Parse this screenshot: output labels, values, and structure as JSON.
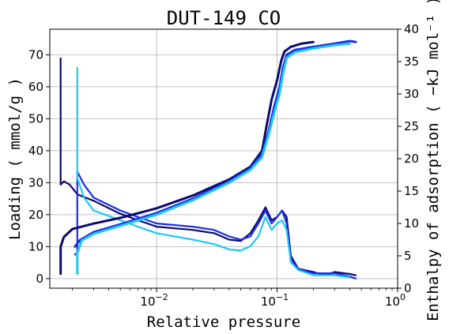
{
  "chart_data": {
    "type": "line",
    "title": "DUT-149 CO",
    "xlabel": "Relative pressure",
    "ylabel": "Loading ( mmol/g )",
    "y2label": "Enthalpy of adsorption ( −kJ mol⁻¹ )",
    "xscale": "log",
    "xlim": [
      0.0013,
      1.0
    ],
    "ylim": [
      -3,
      78
    ],
    "y2lim": [
      0,
      40
    ],
    "grid": true,
    "legend": "none",
    "x_ticks": [
      {
        "value": 0.01,
        "base": "10",
        "exp": "−2"
      },
      {
        "value": 0.1,
        "base": "10",
        "exp": "−1"
      },
      {
        "value": 1,
        "base": "10",
        "exp": "0"
      }
    ],
    "y_ticks": [
      "0",
      "10",
      "20",
      "30",
      "40",
      "50",
      "60",
      "70"
    ],
    "y2_ticks": [
      "0",
      "5",
      "10",
      "15",
      "20",
      "25",
      "30",
      "35",
      "40"
    ],
    "isotherms": [
      {
        "color": "#0a0a6e",
        "points": [
          [
            0.0016,
            1.5
          ],
          [
            0.0016,
            10
          ],
          [
            0.0017,
            13
          ],
          [
            0.002,
            15.5
          ],
          [
            0.003,
            17.2
          ],
          [
            0.005,
            19
          ],
          [
            0.01,
            22
          ],
          [
            0.02,
            26
          ],
          [
            0.04,
            31
          ],
          [
            0.06,
            35
          ],
          [
            0.075,
            40
          ],
          [
            0.082,
            48
          ],
          [
            0.09,
            56
          ],
          [
            0.1,
            62
          ],
          [
            0.108,
            68
          ],
          [
            0.115,
            71
          ],
          [
            0.13,
            72.5
          ],
          [
            0.16,
            73.5
          ],
          [
            0.2,
            74
          ]
        ]
      },
      {
        "color": "#1a2ee6",
        "points": [
          [
            0.0021,
            10
          ],
          [
            0.0023,
            12
          ],
          [
            0.003,
            14.5
          ],
          [
            0.005,
            17
          ],
          [
            0.01,
            20.5
          ],
          [
            0.02,
            25
          ],
          [
            0.04,
            30.5
          ],
          [
            0.06,
            34.5
          ],
          [
            0.075,
            39
          ],
          [
            0.085,
            46
          ],
          [
            0.095,
            54
          ],
          [
            0.105,
            60
          ],
          [
            0.112,
            66
          ],
          [
            0.12,
            70
          ],
          [
            0.14,
            71.5
          ],
          [
            0.2,
            72.5
          ],
          [
            0.3,
            73.5
          ],
          [
            0.4,
            74.3
          ],
          [
            0.45,
            74
          ]
        ]
      },
      {
        "color": "#1ec8f0",
        "points": [
          [
            0.0022,
            1.5
          ],
          [
            0.0022,
            8
          ],
          [
            0.0024,
            12
          ],
          [
            0.003,
            14
          ],
          [
            0.005,
            16.5
          ],
          [
            0.01,
            20
          ],
          [
            0.02,
            24.5
          ],
          [
            0.04,
            30
          ],
          [
            0.06,
            34
          ],
          [
            0.075,
            38
          ],
          [
            0.085,
            45
          ],
          [
            0.095,
            52
          ],
          [
            0.105,
            58
          ],
          [
            0.112,
            64
          ],
          [
            0.12,
            69
          ],
          [
            0.14,
            70.8
          ],
          [
            0.2,
            72
          ],
          [
            0.3,
            73
          ],
          [
            0.4,
            73.5
          ]
        ]
      }
    ],
    "enthalpy": [
      {
        "color": "#0a0a6e",
        "points": [
          [
            0.0016,
            35.5
          ],
          [
            0.0016,
            16
          ],
          [
            0.0017,
            16.5
          ],
          [
            0.0019,
            16
          ],
          [
            0.0022,
            14.5
          ],
          [
            0.003,
            13.5
          ],
          [
            0.005,
            11.5
          ],
          [
            0.007,
            10.5
          ],
          [
            0.01,
            9.5
          ],
          [
            0.02,
            9
          ],
          [
            0.03,
            8.5
          ],
          [
            0.04,
            7.5
          ],
          [
            0.05,
            7.3
          ],
          [
            0.06,
            8.5
          ],
          [
            0.07,
            10.5
          ],
          [
            0.08,
            12.5
          ],
          [
            0.09,
            10.5
          ],
          [
            0.1,
            11
          ],
          [
            0.11,
            12
          ],
          [
            0.12,
            11
          ],
          [
            0.13,
            5
          ],
          [
            0.15,
            3
          ],
          [
            0.2,
            2.5
          ],
          [
            0.25,
            2
          ],
          [
            0.3,
            2.5
          ],
          [
            0.4,
            2.2
          ],
          [
            0.45,
            2
          ]
        ]
      },
      {
        "color": "#1a2ee6",
        "points": [
          [
            0.0021,
            5.2
          ],
          [
            0.0022,
            5.5
          ],
          [
            0.0022,
            18
          ],
          [
            0.0025,
            16
          ],
          [
            0.003,
            14
          ],
          [
            0.005,
            12
          ],
          [
            0.007,
            11
          ],
          [
            0.01,
            10
          ],
          [
            0.02,
            9.5
          ],
          [
            0.03,
            9
          ],
          [
            0.04,
            8
          ],
          [
            0.05,
            7.5
          ],
          [
            0.06,
            8
          ],
          [
            0.07,
            10
          ],
          [
            0.08,
            12
          ],
          [
            0.09,
            10
          ],
          [
            0.1,
            11
          ],
          [
            0.11,
            12
          ],
          [
            0.12,
            10
          ],
          [
            0.13,
            4.5
          ],
          [
            0.15,
            3
          ],
          [
            0.2,
            2.3
          ],
          [
            0.3,
            2.3
          ],
          [
            0.4,
            1.8
          ],
          [
            0.45,
            1.5
          ]
        ]
      },
      {
        "color": "#1ec8f0",
        "points": [
          [
            0.0022,
            34
          ],
          [
            0.0022,
            17
          ],
          [
            0.0025,
            14
          ],
          [
            0.003,
            12
          ],
          [
            0.005,
            10.5
          ],
          [
            0.007,
            9.5
          ],
          [
            0.01,
            8.5
          ],
          [
            0.02,
            7.5
          ],
          [
            0.03,
            6.8
          ],
          [
            0.04,
            6
          ],
          [
            0.05,
            5.8
          ],
          [
            0.06,
            6.5
          ],
          [
            0.07,
            8
          ],
          [
            0.08,
            11
          ],
          [
            0.09,
            9
          ],
          [
            0.1,
            10
          ],
          [
            0.11,
            10.5
          ],
          [
            0.12,
            9
          ],
          [
            0.13,
            4
          ],
          [
            0.15,
            2.8
          ],
          [
            0.2,
            2
          ],
          [
            0.3,
            2
          ],
          [
            0.4,
            1.7
          ]
        ]
      }
    ]
  }
}
